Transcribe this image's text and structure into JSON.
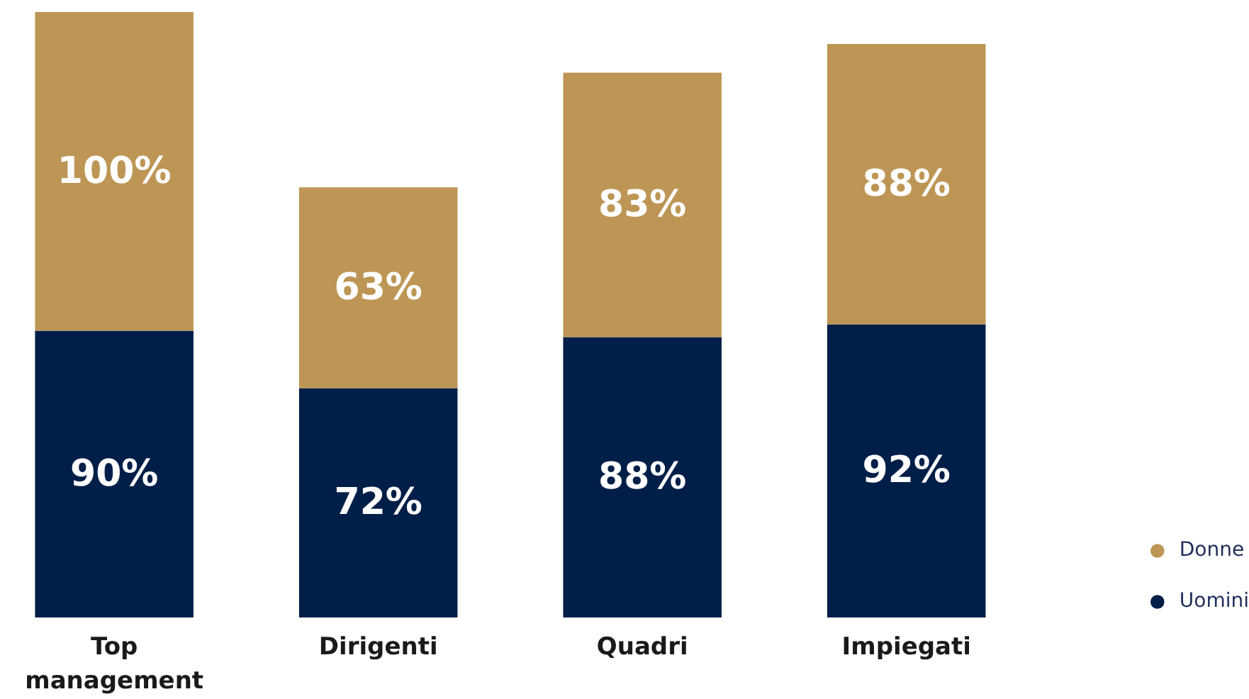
{
  "chart_data": {
    "type": "bar",
    "stacked": true,
    "categories": [
      "Top management",
      "Dirigenti",
      "Quadri",
      "Impiegati"
    ],
    "series": [
      {
        "name": "Uomini",
        "color": "#001f48",
        "values": [
          90,
          72,
          88,
          92
        ],
        "value_labels": [
          "90%",
          "72%",
          "88%",
          "92%"
        ]
      },
      {
        "name": "Donne",
        "color": "#bd9655",
        "values": [
          100,
          63,
          83,
          88
        ],
        "value_labels": [
          "100%",
          "63%",
          "83%",
          "88%"
        ]
      }
    ],
    "legend": "right",
    "marker": "circle"
  }
}
